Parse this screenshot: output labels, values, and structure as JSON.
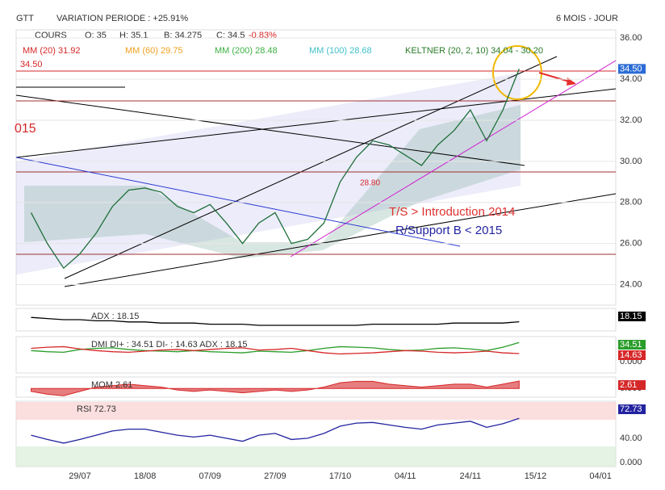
{
  "header": {
    "symbol": "GTT",
    "variation": "VARIATION PERIODE : +25.91%",
    "period": "6 MOIS - JOUR"
  },
  "quote": {
    "name": "COURS",
    "open": "O: 35",
    "high": "H: 35.1",
    "low": "B: 34.275",
    "close": "C: 34.5",
    "change": "-0.83%"
  },
  "legend": [
    {
      "text": "MM (20) 31.92",
      "color": "#d62728"
    },
    {
      "text": "MM (60) 29.75",
      "color": "#f0a020"
    },
    {
      "text": "MM (200) 28.48",
      "color": "#3cb043"
    },
    {
      "text": "MM (100) 28.68",
      "color": "#40c0c8"
    },
    {
      "text": "KELTNER (20, 2, 10) 34.04 - 30.20",
      "color": "#2a7a2a"
    }
  ],
  "annotations": {
    "left_price": "34.50",
    "year": "015",
    "ts": "T/S > Introduction 2014",
    "support": "R/Support B < 2015",
    "level": "28.80"
  },
  "chart_data": [
    {
      "type": "line",
      "name": "price",
      "categories": [
        null,
        null,
        null,
        "29/07",
        null,
        null,
        null,
        "18/08",
        null,
        null,
        null,
        "07/09",
        null,
        null,
        null,
        "27/09",
        null,
        null,
        null,
        "17/10",
        null,
        null,
        null,
        "04/11",
        null,
        null,
        null,
        "24/11",
        null,
        null,
        null,
        "15/12",
        null,
        null,
        null,
        "04/01"
      ],
      "series": [
        {
          "name": "COURS",
          "color": "#1f6f3a",
          "values": [
            27.5,
            26,
            24.8,
            25.5,
            26.5,
            27.8,
            28.6,
            28.7,
            28.5,
            27.8,
            27.5,
            27.9,
            27,
            26,
            27,
            27.5,
            26,
            26.2,
            27,
            29,
            30.2,
            31,
            30.8,
            30.3,
            29.8,
            30.8,
            31.5,
            32.5,
            31,
            32.5,
            34.5,
            null,
            null,
            null,
            null,
            null
          ]
        }
      ],
      "last_value_label": "34.50",
      "ylim": [
        23,
        36.4
      ],
      "yticks": [
        {
          "value": 24,
          "label": "24.00"
        },
        {
          "value": 26,
          "label": "26.00"
        },
        {
          "value": 28,
          "label": "28.00"
        },
        {
          "value": 30,
          "label": "30.00"
        },
        {
          "value": 32,
          "label": "32.00"
        },
        {
          "value": 34,
          "label": "34.00"
        },
        {
          "value": 36,
          "label": "36.00"
        }
      ],
      "grid": true
    },
    {
      "type": "line",
      "name": "adx",
      "label": "ADX : 18.15",
      "ylim": [
        10,
        30
      ],
      "series": [
        {
          "name": "ADX",
          "color": "#000000",
          "box": "18.15",
          "values": [
            22,
            21,
            20,
            20,
            19,
            19,
            18,
            18,
            17,
            17,
            17,
            16,
            16,
            16,
            15,
            15,
            15,
            15,
            15,
            15,
            15,
            16,
            16,
            16,
            16,
            16,
            17,
            17,
            17,
            17,
            18.15,
            null,
            null,
            null,
            null,
            null
          ]
        }
      ]
    },
    {
      "type": "line",
      "name": "dmi",
      "label": "DMI DI+ : 34.51 DI- : 14.63 ADX : 18.15",
      "ylim": [
        -20,
        45
      ],
      "yticks": [
        {
          "value": 0,
          "label": "0.000"
        }
      ],
      "series": [
        {
          "name": "DI+",
          "color": "#2a9d2a",
          "box": "34.51",
          "values": [
            20,
            18,
            17,
            22,
            24,
            25,
            22,
            20,
            19,
            18,
            20,
            18,
            17,
            16,
            19,
            18,
            17,
            20,
            24,
            27,
            26,
            25,
            22,
            20,
            21,
            24,
            25,
            23,
            20,
            26,
            34.51,
            null,
            null,
            null,
            null,
            null
          ]
        },
        {
          "name": "DI-",
          "color": "#d62728",
          "box": "14.63",
          "values": [
            24,
            26,
            27,
            23,
            20,
            18,
            17,
            19,
            21,
            22,
            20,
            22,
            24,
            25,
            21,
            22,
            24,
            20,
            16,
            14,
            15,
            16,
            18,
            20,
            19,
            17,
            16,
            17,
            19,
            16,
            14.63,
            null,
            null,
            null,
            null,
            null
          ]
        }
      ]
    },
    {
      "type": "area",
      "name": "mom",
      "label": "MOM 2.61",
      "ylim": [
        -3,
        4
      ],
      "yticks": [
        {
          "value": 0,
          "label": "0.000"
        }
      ],
      "series": [
        {
          "name": "MOM",
          "color": "#d62728",
          "box": "2.61",
          "values": [
            -1,
            -2,
            -2.5,
            -1,
            0.5,
            1,
            1.5,
            1,
            0.5,
            -0.5,
            -1,
            -0.5,
            -1,
            -1.5,
            -1,
            -0.5,
            -1,
            -0.5,
            0.5,
            2,
            2.5,
            2.5,
            1.5,
            1,
            0.5,
            1,
            1.5,
            1.5,
            0.5,
            1.5,
            2.61,
            null,
            null,
            null,
            null,
            null
          ]
        }
      ]
    },
    {
      "type": "line",
      "name": "rsi",
      "label": "RSI 72.73",
      "ylim": [
        0,
        101
      ],
      "yticks": [
        {
          "value": 40,
          "label": "40.00"
        },
        {
          "value": 0,
          "label": "0.000"
        }
      ],
      "series": [
        {
          "name": "RSI",
          "color": "#2323a0",
          "box": "72.73",
          "values": [
            45,
            38,
            32,
            38,
            45,
            52,
            55,
            55,
            50,
            45,
            42,
            45,
            40,
            35,
            45,
            48,
            38,
            40,
            48,
            60,
            65,
            66,
            62,
            58,
            55,
            62,
            65,
            68,
            58,
            64,
            72.73,
            null,
            null,
            null,
            null,
            null
          ]
        }
      ]
    }
  ]
}
